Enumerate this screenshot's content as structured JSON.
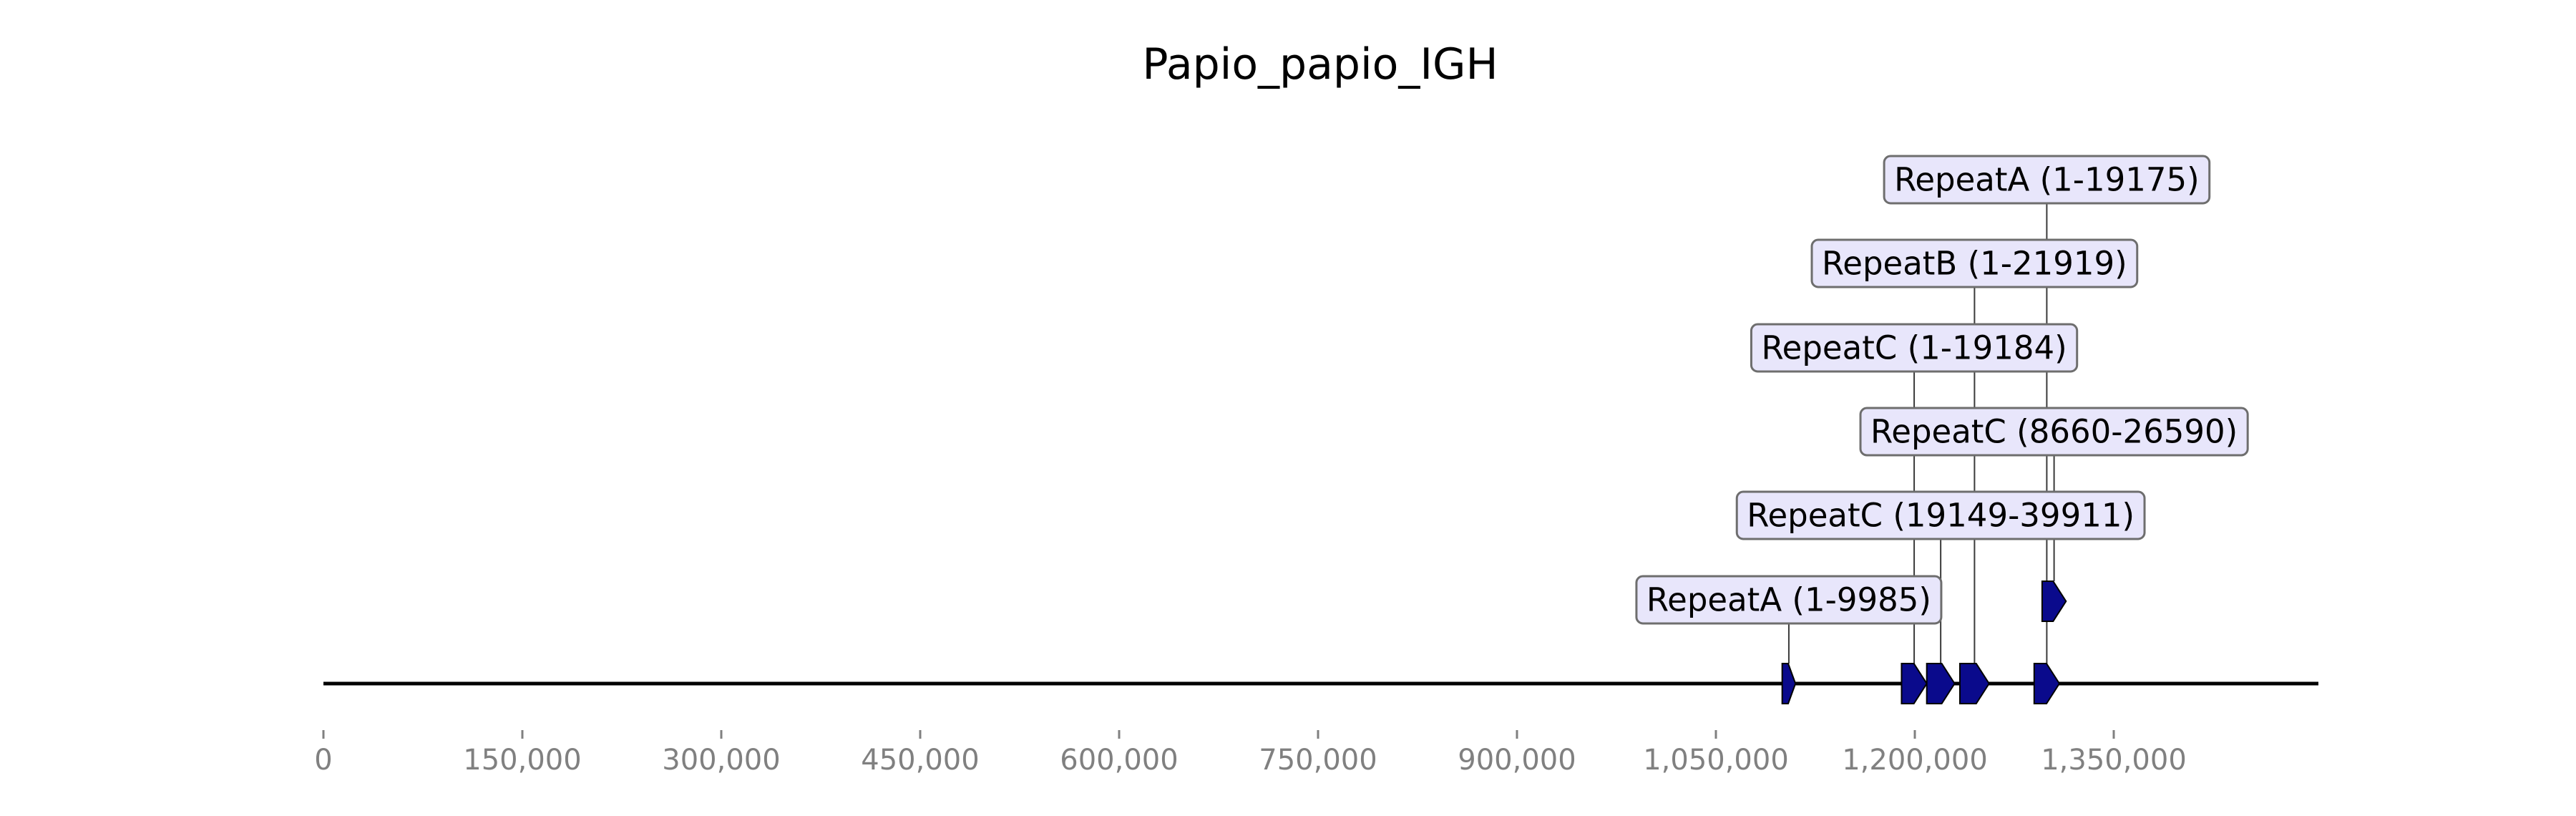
{
  "title": "Papio_papio_IGH",
  "axis": {
    "range": [
      0,
      1500000
    ],
    "ticks": [
      0,
      150000,
      300000,
      450000,
      600000,
      750000,
      900000,
      1050000,
      1200000,
      1350000
    ],
    "tick_labels": [
      "0",
      "150,000",
      "300,000",
      "450,000",
      "600,000",
      "750,000",
      "900,000",
      "1,050,000",
      "1,200,000",
      "1,350,000"
    ]
  },
  "colors": {
    "feature": "#0a0a8c",
    "label_box": "#e8e6fb"
  },
  "features": [
    {
      "label": "RepeatA (1-9985)",
      "start": 1100000,
      "end": 1110000,
      "strand": "+",
      "track": 0,
      "label_level": 1
    },
    {
      "label": "RepeatC (1-19184)",
      "start": 1190000,
      "end": 1209000,
      "strand": "+",
      "track": 0,
      "label_level": 4
    },
    {
      "label": "RepeatC (19149-39911)",
      "start": 1209000,
      "end": 1230000,
      "strand": "+",
      "track": 0,
      "label_level": 2
    },
    {
      "label": "RepeatB (1-21919)",
      "start": 1234000,
      "end": 1256000,
      "strand": "+",
      "track": 0,
      "label_level": 5
    },
    {
      "label": "RepeatA (1-19175)",
      "start": 1290000,
      "end": 1309000,
      "strand": "+",
      "track": 0,
      "label_level": 6
    },
    {
      "label": "RepeatC (8660-26590)",
      "start": 1296000,
      "end": 1314000,
      "strand": "+",
      "track": 1,
      "label_level": 3
    }
  ]
}
